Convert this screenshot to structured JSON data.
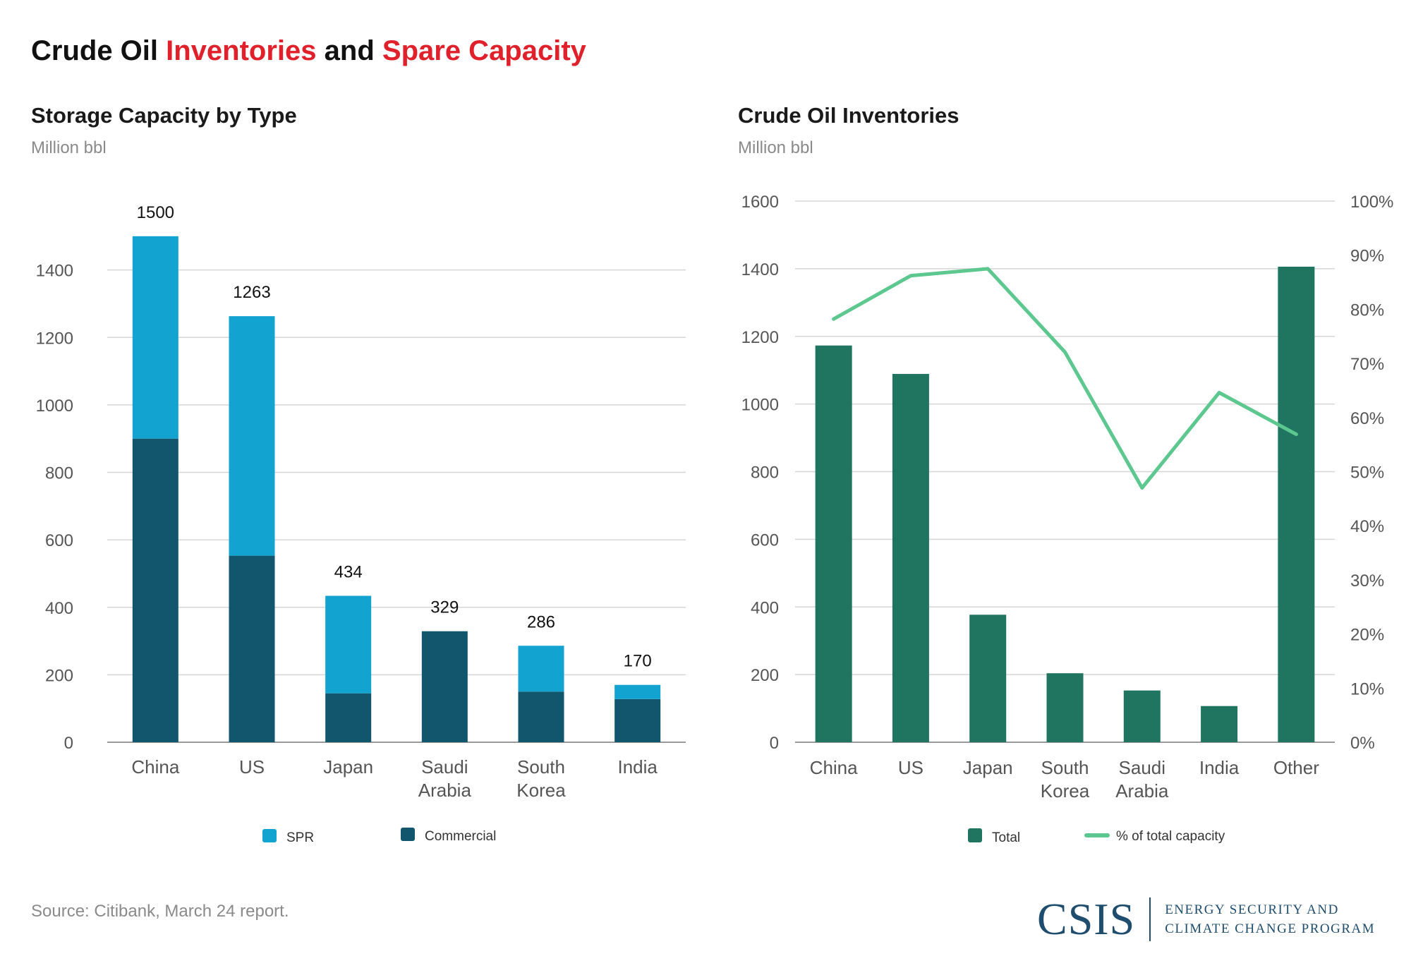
{
  "title": {
    "part1": "Crude Oil ",
    "part2": "Inventories",
    "part3": " and ",
    "part4": "Spare Capacity"
  },
  "colors": {
    "spr": "#12a3d0",
    "commercial": "#12566d",
    "total": "#207560",
    "pct_line": "#5cc78e",
    "grid": "#d6d6d6",
    "axis_text": "#555555",
    "title_red": "#e0202a"
  },
  "chart_data": [
    {
      "type": "bar",
      "stacked": true,
      "title": "Storage Capacity by Type",
      "ylabel": "Million bbl",
      "categories": [
        "China",
        "US",
        "Japan",
        "Saudi Arabia",
        "South Korea",
        "India"
      ],
      "series": [
        {
          "name": "Commercial",
          "values": [
            900,
            553,
            145,
            329,
            150,
            128
          ]
        },
        {
          "name": "SPR",
          "values": [
            600,
            710,
            289,
            0,
            136,
            42
          ]
        }
      ],
      "totals": [
        1500,
        1263,
        434,
        329,
        286,
        170
      ],
      "ylim": [
        0,
        1400
      ],
      "yticks": [
        0,
        200,
        400,
        600,
        800,
        1000,
        1200,
        1400
      ],
      "legend": [
        "SPR",
        "Commercial"
      ],
      "legend_position": "bottom"
    },
    {
      "type": "bar+line",
      "title": "Crude Oil Inventories",
      "ylabel": "Million bbl",
      "categories": [
        "China",
        "US",
        "Japan",
        "South Korea",
        "Saudi Arabia",
        "India",
        "Other"
      ],
      "series": [
        {
          "name": "Total",
          "type": "bar",
          "axis": "left",
          "values": [
            1173,
            1089,
            377,
            204,
            153,
            107,
            1406
          ]
        },
        {
          "name": "% of total capacity",
          "type": "line",
          "axis": "right",
          "values": [
            78.2,
            86.2,
            87.5,
            72.1,
            47.0,
            64.6,
            56.9
          ]
        }
      ],
      "ylim_left": [
        0,
        1600
      ],
      "yticks_left": [
        0,
        200,
        400,
        600,
        800,
        1000,
        1200,
        1400,
        1600
      ],
      "ylim_right": [
        0,
        100
      ],
      "yticks_right": [
        "0%",
        "10%",
        "20%",
        "30%",
        "40%",
        "50%",
        "60%",
        "70%",
        "80%",
        "90%",
        "100%"
      ],
      "legend": [
        "Total",
        "% of total capacity"
      ],
      "legend_position": "bottom"
    }
  ],
  "source": "Source: Citibank, March 24 report.",
  "logo": {
    "mark": "CSIS",
    "line1": "ENERGY SECURITY AND",
    "line2": "CLIMATE CHANGE PROGRAM"
  }
}
